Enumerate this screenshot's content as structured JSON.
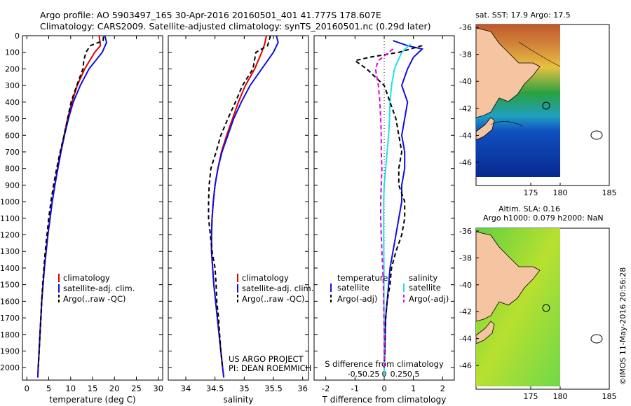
{
  "header": {
    "line1": "Argo profile: AO 5903497_165 30-Apr-2016 20160501_401 41.777S 178.607E",
    "line2": "Climatology: CARS2009. Satellite-adjusted climatology: synTS_20160501.nc (0.29d later)"
  },
  "colors": {
    "climatology": "#e00000",
    "satellite": "#1010e0",
    "argo": "#000000",
    "cyan": "#22e0e8",
    "magenta": "#e000e0",
    "land": "#f5c4a0"
  },
  "legend_main": {
    "climatology": "climatology",
    "satellite": "satellite-adj. clim.",
    "argo": "Argo(..raw -QC)"
  },
  "legend_diff": {
    "temperature": "temperature",
    "salinity": "salinity",
    "satellite": "satellite",
    "argo": "Argo(-adj)"
  },
  "credit": {
    "line1": "US ARGO PROJECT",
    "line2": "PI: DEAN ROEMMICH"
  },
  "stamp": "©IMOS 11-May-2016 20:56:28",
  "map_sst": {
    "title": "sat. SST: 17.9 Argo: 17.5",
    "yticks": [
      "-36",
      "-38",
      "-40",
      "-42",
      "-44",
      "-46"
    ],
    "xticks": [
      "175",
      "180",
      "185"
    ]
  },
  "map_sla": {
    "title1": "Altim. SLA: 0.16",
    "title2": "Argo h1000: 0.079 h2000: NaN",
    "yticks": [
      "-36",
      "-38",
      "-40",
      "-42",
      "-44",
      "-46"
    ],
    "xticks": [
      "175",
      "180",
      "185"
    ]
  },
  "chart_data": [
    {
      "type": "line",
      "xlabel": "temperature (deg C)",
      "ylabel": "",
      "xlim": [
        -1,
        31
      ],
      "ylim": [
        2075,
        0
      ],
      "xticks": [
        0,
        5,
        10,
        15,
        20,
        25,
        30
      ],
      "yticks": [
        0,
        100,
        200,
        300,
        400,
        500,
        600,
        700,
        800,
        900,
        1000,
        1100,
        1200,
        1300,
        1400,
        1500,
        1600,
        1700,
        1800,
        1900,
        2000
      ],
      "series": [
        {
          "name": "climatology",
          "color": "#e00000",
          "dash": "",
          "points": [
            [
              16.5,
              0
            ],
            [
              16.8,
              60
            ],
            [
              15.5,
              100
            ],
            [
              13.2,
              200
            ],
            [
              11.5,
              300
            ],
            [
              10.3,
              400
            ],
            [
              9.3,
              500
            ],
            [
              8.5,
              600
            ],
            [
              7.7,
              700
            ],
            [
              7.0,
              800
            ],
            [
              6.4,
              900
            ],
            [
              5.8,
              1000
            ],
            [
              5.3,
              1100
            ],
            [
              4.8,
              1200
            ],
            [
              4.4,
              1300
            ],
            [
              4.0,
              1400
            ],
            [
              3.7,
              1500
            ],
            [
              3.4,
              1600
            ],
            [
              3.2,
              1700
            ],
            [
              3.0,
              1800
            ],
            [
              2.8,
              1900
            ],
            [
              2.6,
              2000
            ],
            [
              2.5,
              2060
            ]
          ]
        },
        {
          "name": "satellite-adj. clim.",
          "color": "#1010e0",
          "dash": "",
          "points": [
            [
              17.8,
              0
            ],
            [
              18.2,
              40
            ],
            [
              17.2,
              100
            ],
            [
              14.2,
              200
            ],
            [
              12.2,
              300
            ],
            [
              10.6,
              400
            ],
            [
              9.5,
              500
            ],
            [
              8.6,
              600
            ],
            [
              7.8,
              700
            ],
            [
              7.1,
              800
            ],
            [
              6.4,
              900
            ],
            [
              5.8,
              1000
            ],
            [
              5.3,
              1100
            ],
            [
              4.8,
              1200
            ],
            [
              4.4,
              1300
            ],
            [
              4.0,
              1400
            ],
            [
              3.7,
              1500
            ],
            [
              3.4,
              1600
            ],
            [
              3.2,
              1700
            ],
            [
              3.0,
              1800
            ],
            [
              2.8,
              1900
            ],
            [
              2.6,
              2000
            ],
            [
              2.5,
              2060
            ]
          ]
        },
        {
          "name": "Argo(..raw -QC)",
          "color": "#000000",
          "dash": "6,4",
          "points": [
            [
              17.5,
              5
            ],
            [
              17.4,
              30
            ],
            [
              14.5,
              60
            ],
            [
              13.5,
              100
            ],
            [
              13.0,
              150
            ],
            [
              12.8,
              200
            ],
            [
              11.4,
              300
            ],
            [
              10.1,
              400
            ],
            [
              9.3,
              500
            ],
            [
              8.5,
              600
            ],
            [
              7.6,
              700
            ],
            [
              6.8,
              800
            ],
            [
              6.1,
              900
            ],
            [
              5.5,
              1000
            ],
            [
              5.0,
              1100
            ],
            [
              4.6,
              1200
            ],
            [
              4.2,
              1300
            ],
            [
              3.9,
              1400
            ],
            [
              3.6,
              1500
            ],
            [
              3.4,
              1600
            ],
            [
              3.2,
              1700
            ],
            [
              3.0,
              1800
            ],
            [
              2.8,
              1900
            ],
            [
              2.6,
              2000
            ]
          ]
        }
      ]
    },
    {
      "type": "line",
      "xlabel": "salinity",
      "xlim": [
        33.7,
        36.1
      ],
      "ylim": [
        2075,
        0
      ],
      "xticks": [
        34,
        34.5,
        35,
        35.5,
        36
      ],
      "series": [
        {
          "name": "climatology",
          "color": "#e00000",
          "dash": "",
          "points": [
            [
              35.38,
              0
            ],
            [
              35.35,
              50
            ],
            [
              35.3,
              100
            ],
            [
              35.18,
              200
            ],
            [
              35.02,
              300
            ],
            [
              34.9,
              400
            ],
            [
              34.8,
              500
            ],
            [
              34.7,
              600
            ],
            [
              34.61,
              700
            ],
            [
              34.55,
              800
            ],
            [
              34.5,
              900
            ],
            [
              34.47,
              1000
            ],
            [
              34.45,
              1100
            ],
            [
              34.44,
              1200
            ],
            [
              34.44,
              1300
            ],
            [
              34.46,
              1400
            ],
            [
              34.48,
              1500
            ],
            [
              34.51,
              1600
            ],
            [
              34.54,
              1700
            ],
            [
              34.57,
              1800
            ],
            [
              34.6,
              1900
            ],
            [
              34.63,
              2000
            ],
            [
              34.65,
              2060
            ]
          ]
        },
        {
          "name": "satellite-adj. clim.",
          "color": "#1010e0",
          "dash": "",
          "points": [
            [
              35.55,
              0
            ],
            [
              35.58,
              40
            ],
            [
              35.5,
              100
            ],
            [
              35.3,
              200
            ],
            [
              35.1,
              300
            ],
            [
              34.95,
              400
            ],
            [
              34.82,
              500
            ],
            [
              34.72,
              600
            ],
            [
              34.62,
              700
            ],
            [
              34.55,
              800
            ],
            [
              34.5,
              900
            ],
            [
              34.47,
              1000
            ],
            [
              34.45,
              1100
            ],
            [
              34.44,
              1200
            ],
            [
              34.44,
              1300
            ],
            [
              34.46,
              1400
            ],
            [
              34.48,
              1500
            ],
            [
              34.51,
              1600
            ],
            [
              34.54,
              1700
            ],
            [
              34.57,
              1800
            ],
            [
              34.6,
              1900
            ],
            [
              34.63,
              2000
            ],
            [
              34.65,
              2060
            ]
          ]
        },
        {
          "name": "Argo(..raw -QC)",
          "color": "#000000",
          "dash": "6,4",
          "points": [
            [
              35.45,
              0
            ],
            [
              35.4,
              60
            ],
            [
              35.2,
              100
            ],
            [
              35.15,
              200
            ],
            [
              34.97,
              300
            ],
            [
              34.85,
              400
            ],
            [
              34.72,
              500
            ],
            [
              34.6,
              600
            ],
            [
              34.52,
              700
            ],
            [
              34.43,
              800
            ],
            [
              34.4,
              900
            ],
            [
              34.39,
              1000
            ],
            [
              34.39,
              1100
            ],
            [
              34.42,
              1200
            ],
            [
              34.45,
              1300
            ],
            [
              34.5,
              1400
            ],
            [
              34.52,
              1500
            ],
            [
              34.53,
              1600
            ],
            [
              34.56,
              1700
            ],
            [
              34.58,
              1800
            ],
            [
              34.6,
              1900
            ],
            [
              34.63,
              2000
            ]
          ]
        }
      ]
    },
    {
      "type": "line",
      "xlabel": "T difference from climatology",
      "top_label": "S difference from climatology",
      "xlim": [
        -2.4,
        2.4
      ],
      "ylim": [
        2075,
        0
      ],
      "xticks": [
        -2,
        -1,
        0,
        1,
        2
      ],
      "top_xticks": [
        [
          -1,
          "-0.5"
        ],
        [
          -0.5,
          "-0.25"
        ],
        [
          0,
          "0"
        ],
        [
          0.5,
          "0.25"
        ],
        [
          1,
          "0.5"
        ]
      ],
      "series": [
        {
          "name": "temperature satellite",
          "color": "#1010e0",
          "dash": "",
          "points": [
            [
              0.3,
              30
            ],
            [
              0.8,
              60
            ],
            [
              1.3,
              80
            ],
            [
              1.0,
              130
            ],
            [
              0.8,
              200
            ],
            [
              0.6,
              300
            ],
            [
              0.8,
              400
            ],
            [
              0.7,
              500
            ],
            [
              0.6,
              600
            ],
            [
              0.7,
              700
            ],
            [
              0.7,
              800
            ],
            [
              0.6,
              900
            ],
            [
              0.6,
              1000
            ],
            [
              0.5,
              1100
            ],
            [
              0.4,
              1200
            ],
            [
              0.3,
              1300
            ],
            [
              0.2,
              1400
            ],
            [
              0.15,
              1500
            ],
            [
              0.1,
              1600
            ],
            [
              0.05,
              1700
            ],
            [
              0.03,
              1800
            ],
            [
              0.02,
              1900
            ],
            [
              0.0,
              2000
            ],
            [
              0.0,
              2050
            ]
          ]
        },
        {
          "name": "salinity satellite",
          "color": "#22e0e8",
          "dash": "",
          "points": [
            [
              0.9,
              50
            ],
            [
              0.6,
              100
            ],
            [
              0.35,
              200
            ],
            [
              0.25,
              300
            ],
            [
              0.2,
              400
            ],
            [
              0.18,
              500
            ],
            [
              0.15,
              600
            ],
            [
              0.1,
              700
            ],
            [
              0.05,
              800
            ],
            [
              0.0,
              900
            ],
            [
              -0.02,
              1000
            ],
            [
              -0.02,
              1200
            ],
            [
              -0.01,
              1400
            ],
            [
              -0.01,
              1600
            ],
            [
              0.0,
              1800
            ],
            [
              0.0,
              2000
            ],
            [
              0.0,
              2050
            ]
          ]
        },
        {
          "name": "temperature Argo(-adj)",
          "color": "#000000",
          "dash": "6,4",
          "points": [
            [
              1.3,
              60
            ],
            [
              0.5,
              100
            ],
            [
              -0.5,
              130
            ],
            [
              -1.0,
              150
            ],
            [
              -0.6,
              200
            ],
            [
              0.0,
              300
            ],
            [
              0.2,
              400
            ],
            [
              0.4,
              500
            ],
            [
              0.5,
              600
            ],
            [
              0.6,
              700
            ],
            [
              0.5,
              800
            ],
            [
              0.5,
              900
            ],
            [
              0.7,
              1000
            ],
            [
              0.7,
              1100
            ],
            [
              0.6,
              1200
            ],
            [
              0.4,
              1300
            ],
            [
              0.25,
              1400
            ],
            [
              0.2,
              1500
            ],
            [
              0.1,
              1600
            ],
            [
              0.05,
              1700
            ],
            [
              0.03,
              1800
            ],
            [
              0.02,
              1900
            ],
            [
              0.0,
              2000
            ]
          ]
        },
        {
          "name": "salinity Argo(-adj)",
          "color": "#e000e0",
          "dash": "6,4",
          "points": [
            [
              0.3,
              80
            ],
            [
              -0.2,
              150
            ],
            [
              -0.3,
              200
            ],
            [
              -0.2,
              300
            ],
            [
              -0.15,
              400
            ],
            [
              -0.12,
              500
            ],
            [
              -0.1,
              600
            ],
            [
              -0.1,
              700
            ],
            [
              -0.08,
              800
            ],
            [
              -0.1,
              900
            ],
            [
              -0.12,
              1000
            ],
            [
              -0.12,
              1100
            ],
            [
              -0.1,
              1200
            ],
            [
              -0.08,
              1300
            ],
            [
              -0.05,
              1400
            ],
            [
              -0.03,
              1500
            ],
            [
              -0.02,
              1600
            ],
            [
              -0.01,
              1700
            ],
            [
              0.0,
              1800
            ],
            [
              0.0,
              2000
            ]
          ]
        }
      ]
    }
  ]
}
